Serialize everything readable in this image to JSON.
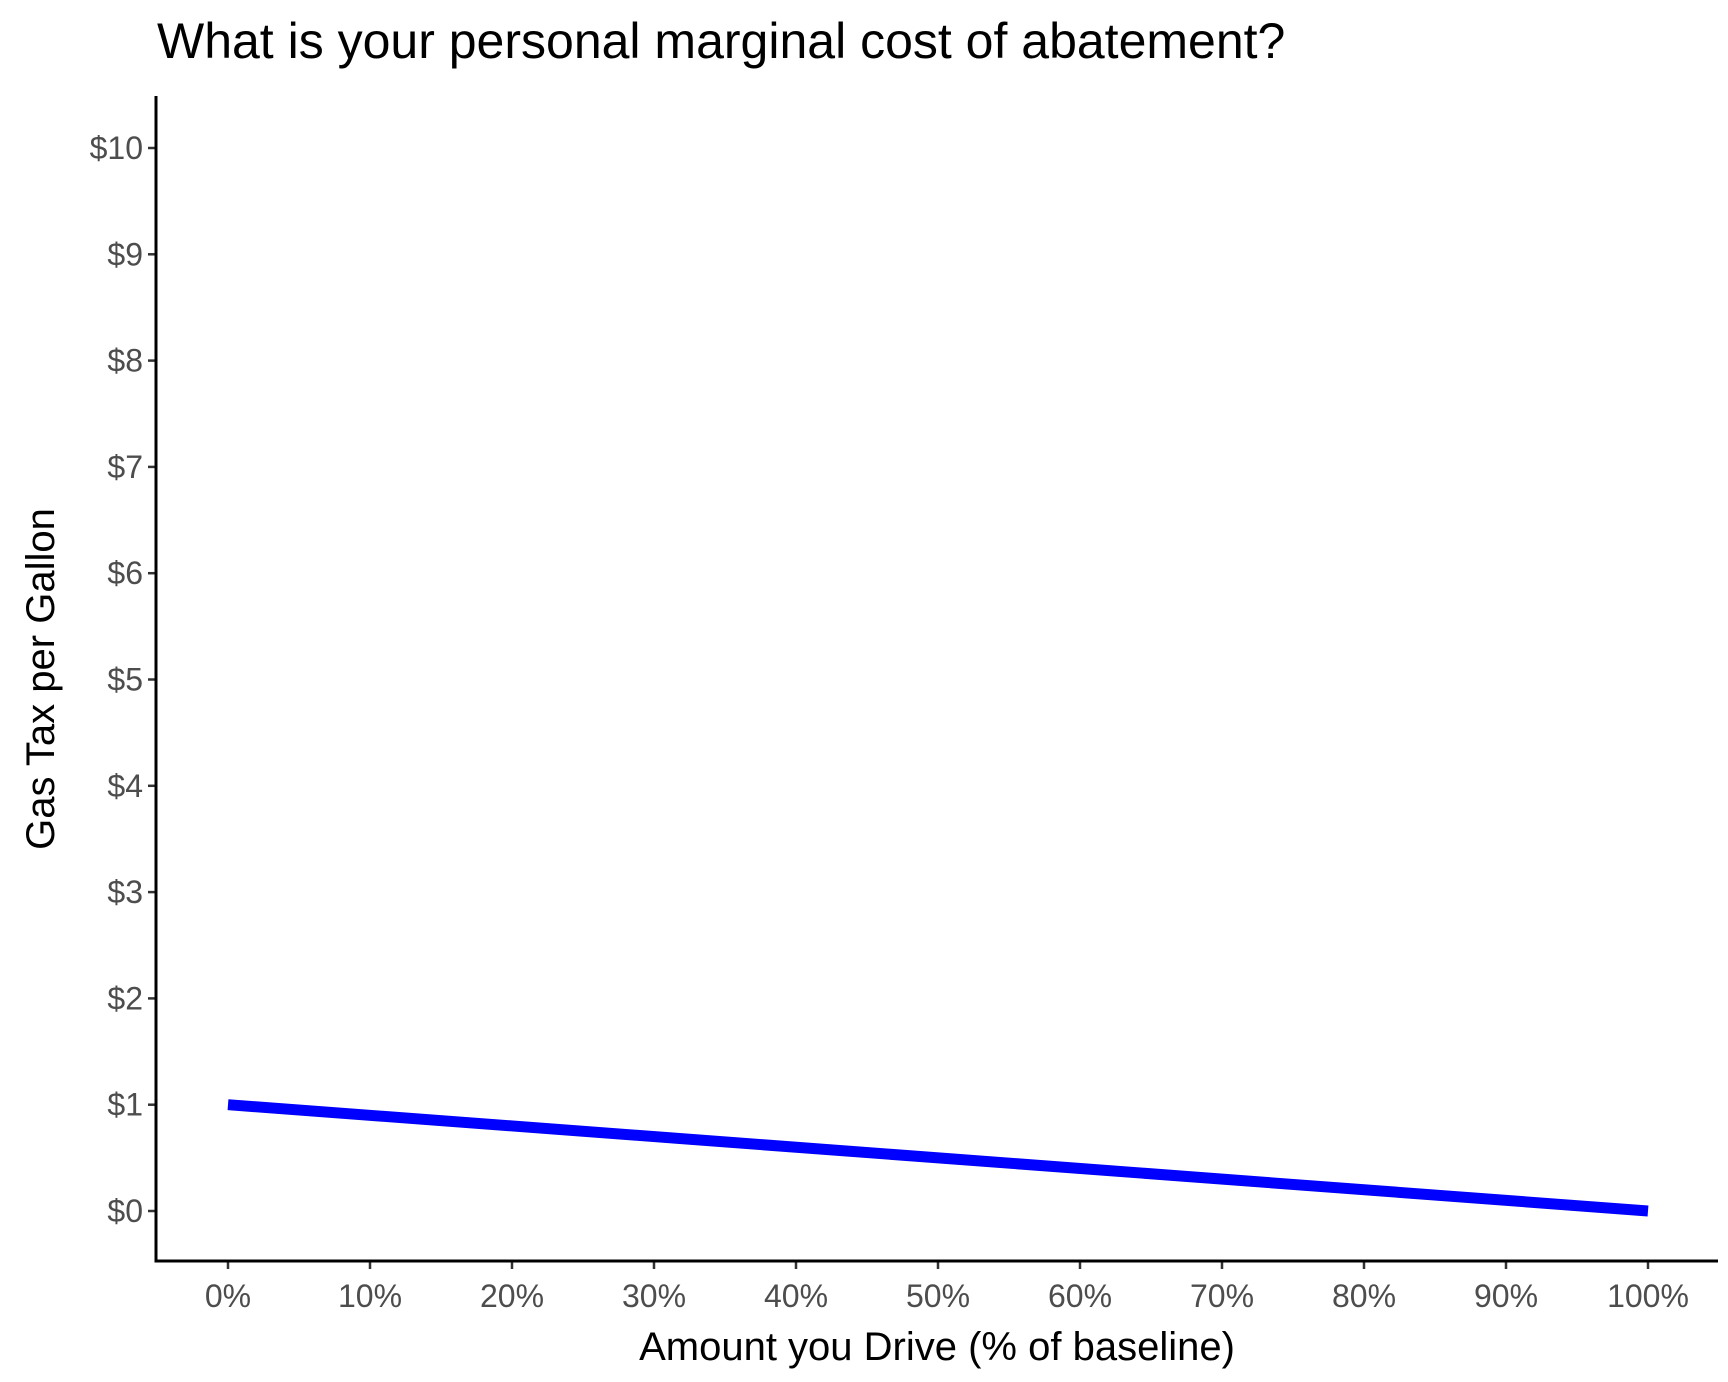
{
  "chart_data": {
    "type": "line",
    "title": "What is your personal marginal cost of abatement?",
    "xlabel": "Amount you Drive (% of baseline)",
    "ylabel": "Gas Tax per Gallon",
    "xlim": [
      -5,
      105
    ],
    "ylim": [
      -0.5,
      10.5
    ],
    "x_ticks": [
      0,
      10,
      20,
      30,
      40,
      50,
      60,
      70,
      80,
      90,
      100
    ],
    "x_tick_labels": [
      "0%",
      "10%",
      "20%",
      "30%",
      "40%",
      "50%",
      "60%",
      "70%",
      "80%",
      "90%",
      "100%"
    ],
    "y_ticks": [
      0,
      1,
      2,
      3,
      4,
      5,
      6,
      7,
      8,
      9,
      10
    ],
    "y_tick_labels": [
      "$0",
      "$1",
      "$2",
      "$3",
      "$4",
      "$5",
      "$6",
      "$7",
      "$8",
      "$9",
      "$10"
    ],
    "grid": false,
    "series": [
      {
        "color": "#0000ff",
        "x": [
          0,
          100
        ],
        "y": [
          1,
          0
        ]
      }
    ]
  }
}
